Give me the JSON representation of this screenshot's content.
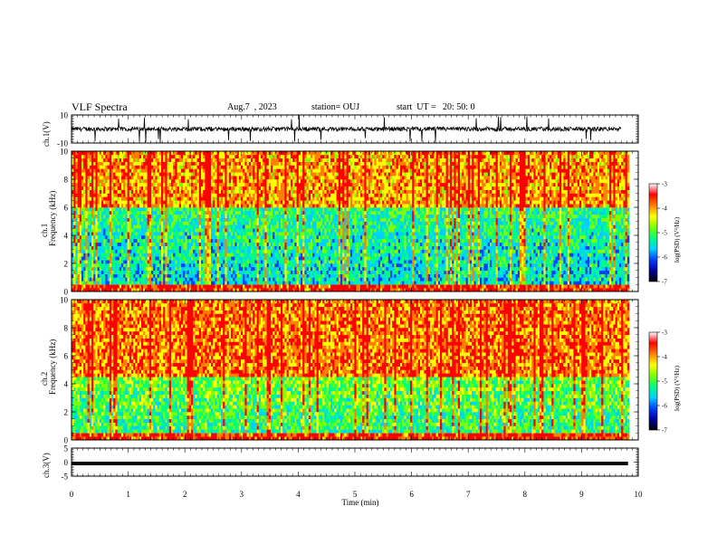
{
  "header": {
    "title": "VLF Spectra",
    "date": "Aug.7  , 2023",
    "station": "station= OUJ",
    "start": "start  UT =   20: 50: 0"
  },
  "colors": {
    "spectrogram_scale": [
      "#000000",
      "#0000a0",
      "#0040ff",
      "#00d0ff",
      "#00ff80",
      "#80ff00",
      "#ffff00",
      "#ff8000",
      "#ff0000",
      "#ffffff"
    ],
    "waveform": "#000000"
  },
  "chart_data": [
    {
      "type": "line",
      "title": "VLF Spectra",
      "ylabel": "ch.1(V)",
      "ylim": [
        -10,
        10
      ],
      "yticks": [
        "10",
        "-10"
      ],
      "xlim": [
        0,
        10
      ],
      "series": [
        {
          "baseline": 0,
          "noise_amplitude": 1.5,
          "spike_amplitude": 10
        }
      ]
    },
    {
      "type": "heatmap",
      "ylabel_1": "ch.1",
      "ylabel_2": "Frequency (kHz)",
      "ylim": [
        0,
        10
      ],
      "yticks": [
        "0",
        "2",
        "4",
        "6",
        "8",
        "10"
      ],
      "xlim": [
        0,
        10
      ],
      "colorbar": {
        "label": "log(PSD) (V²/Hz)",
        "range": [
          -7,
          -3
        ],
        "ticks": [
          "-3",
          "-4",
          "-5",
          "-6",
          "-7"
        ]
      }
    },
    {
      "type": "heatmap",
      "ylabel_1": "ch.2",
      "ylabel_2": "Frequency (kHz)",
      "ylim": [
        0,
        10
      ],
      "yticks": [
        "0",
        "2",
        "4",
        "6",
        "8",
        "10"
      ],
      "xlim": [
        0,
        10
      ],
      "colorbar": {
        "label": "log(PSD) (V²/Hz)",
        "range": [
          -7,
          -3
        ],
        "ticks": [
          "-3",
          "-4",
          "-5",
          "-6",
          "-7"
        ]
      }
    },
    {
      "type": "line",
      "ylabel": "ch.3(V)",
      "ylim": [
        -5,
        5
      ],
      "yticks": [
        "5",
        "0",
        "-5"
      ],
      "xlim": [
        0,
        10
      ],
      "xlabel": "Time  (min)",
      "xticks": [
        "0",
        "1",
        "2",
        "3",
        "4",
        "5",
        "6",
        "7",
        "8",
        "9",
        "10"
      ],
      "series": [
        {
          "value": -0.5
        }
      ]
    }
  ]
}
